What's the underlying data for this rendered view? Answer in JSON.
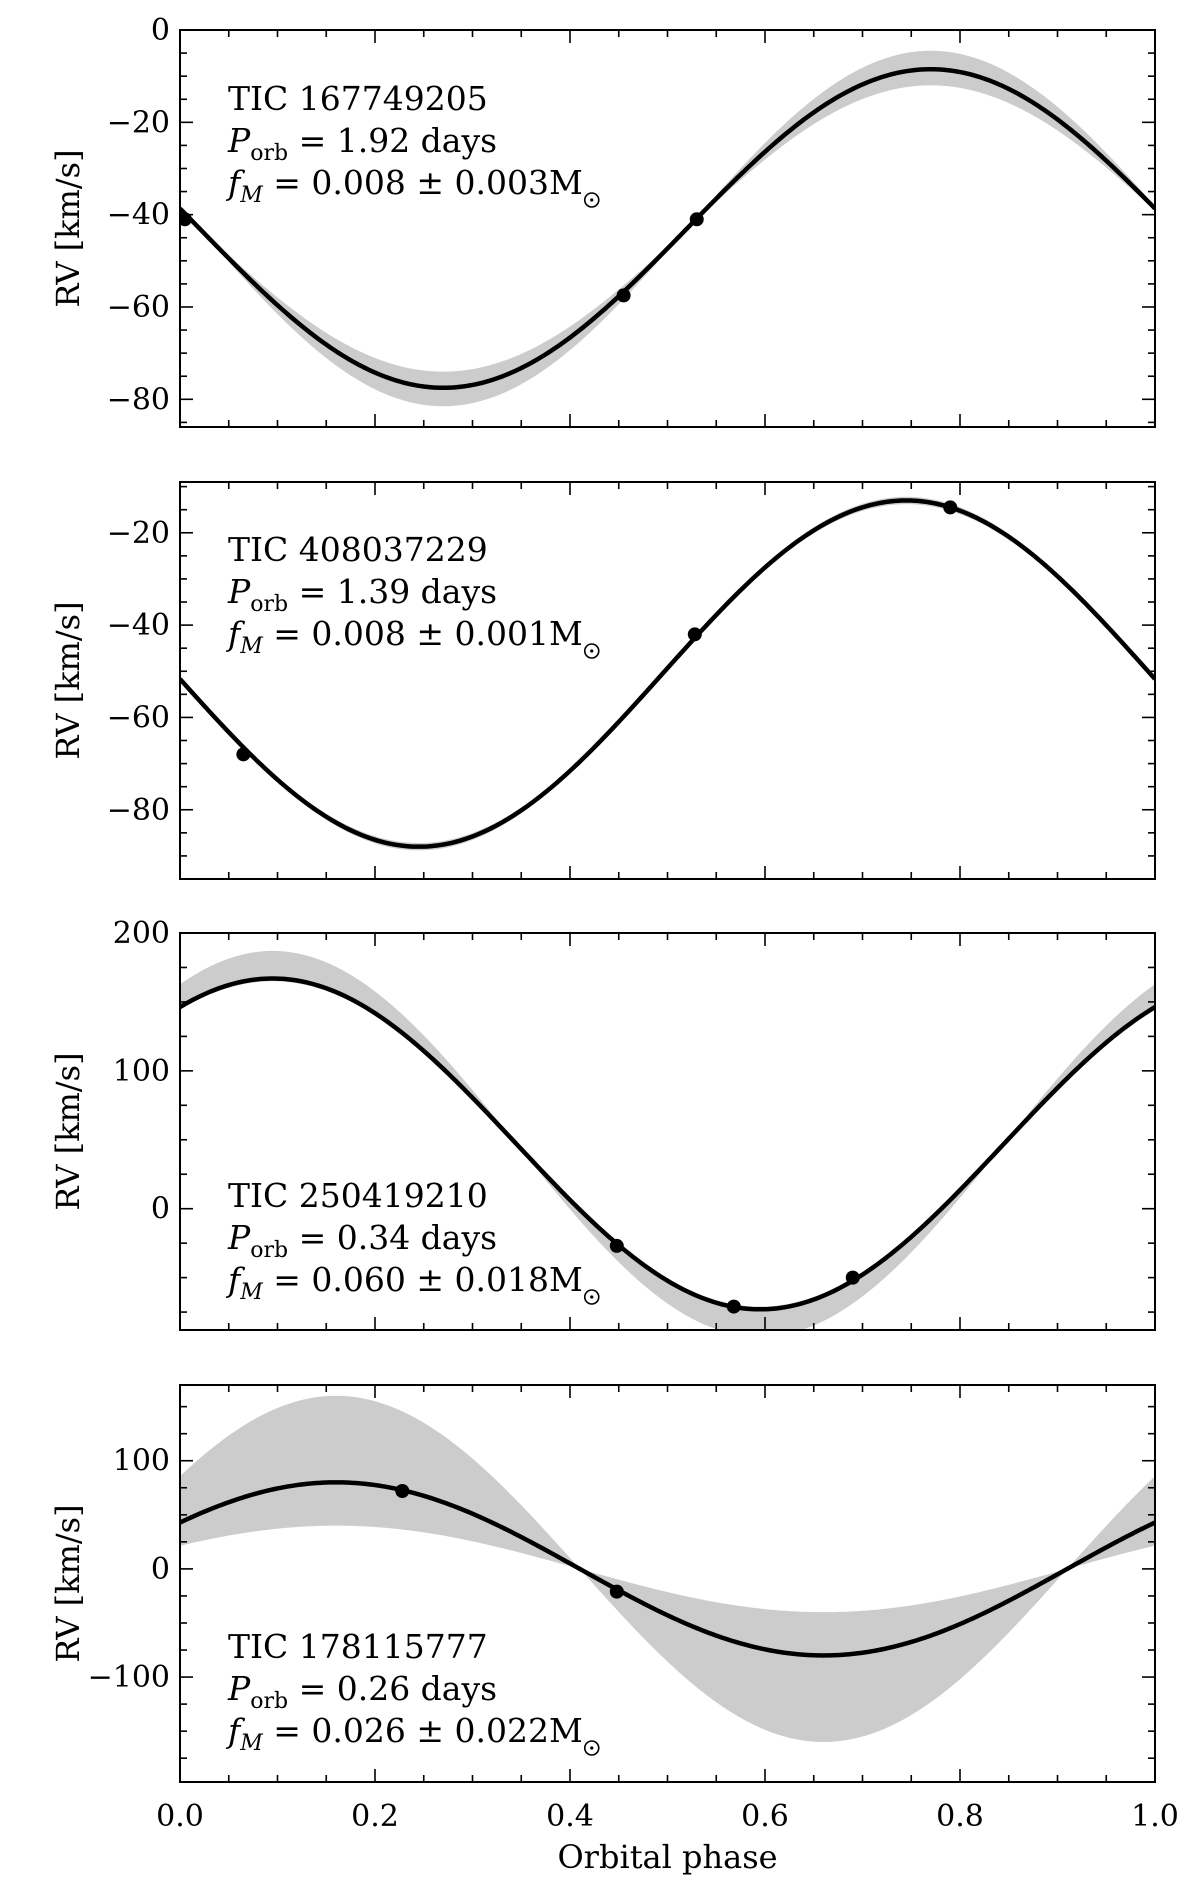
{
  "chart_data": [
    {
      "type": "line",
      "name_text": "TIC 167749205",
      "period_label": "P",
      "period_sub": "orb",
      "period_value": " = 1.92 days",
      "fm_label": "f",
      "fm_sub": "M",
      "fm_value": " = 0.008 ± 0.003M",
      "ylabel": "RV [km/s]",
      "xlim": [
        0,
        1
      ],
      "ylim": [
        -86,
        0
      ],
      "yticks": [
        0,
        -20,
        -40,
        -60,
        -80
      ],
      "ytick_labels": [
        "0",
        "−20",
        "−40",
        "−60",
        "−80"
      ],
      "model": {
        "gamma": -43,
        "K": 34.5,
        "peak_phase": 0.77,
        "band_K_plus": 38.5,
        "band_K_minus": 31
      },
      "points": [
        {
          "x": 0.005,
          "y": -41
        },
        {
          "x": 0.455,
          "y": -57.5
        },
        {
          "x": 0.53,
          "y": -41
        }
      ]
    },
    {
      "type": "line",
      "name_text": "TIC 408037229",
      "period_label": "P",
      "period_sub": "orb",
      "period_value": " = 1.39 days",
      "fm_label": "f",
      "fm_sub": "M",
      "fm_value": " = 0.008 ± 0.001M",
      "ylabel": "RV [km/s]",
      "xlim": [
        0,
        1
      ],
      "ylim": [
        -95,
        -9
      ],
      "yticks": [
        -20,
        -40,
        -60,
        -80
      ],
      "ytick_labels": [
        "−20",
        "−40",
        "−60",
        "−80"
      ],
      "model": {
        "gamma": -50.5,
        "K": 37.5,
        "peak_phase": 0.745,
        "band_K_plus": 38.3,
        "band_K_minus": 36.7
      },
      "points": [
        {
          "x": 0.065,
          "y": -68
        },
        {
          "x": 0.528,
          "y": -42
        },
        {
          "x": 0.79,
          "y": -14.5
        }
      ]
    },
    {
      "type": "line",
      "name_text": "TIC 250419210",
      "period_label": "P",
      "period_sub": "orb",
      "period_value": " = 0.34 days",
      "fm_label": "f",
      "fm_sub": "M",
      "fm_value": " = 0.060 ± 0.018M",
      "ylabel": "RV [km/s]",
      "xlim": [
        0,
        1
      ],
      "ylim": [
        -88,
        200
      ],
      "yticks": [
        200,
        100,
        0
      ],
      "ytick_labels": [
        "200",
        "100",
        "0"
      ],
      "model": {
        "gamma": 47,
        "K": 120,
        "peak_phase": 0.095,
        "band_K_plus": 140,
        "band_K_minus": 118
      },
      "points": [
        {
          "x": 0.448,
          "y": -27
        },
        {
          "x": 0.568,
          "y": -71
        },
        {
          "x": 0.69,
          "y": -50
        }
      ]
    },
    {
      "type": "line",
      "name_text": "TIC 178115777",
      "period_label": "P",
      "period_sub": "orb",
      "period_value": " = 0.26 days",
      "fm_label": "f",
      "fm_sub": "M",
      "fm_value": " = 0.026 ± 0.022M",
      "ylabel": "RV [km/s]",
      "xlim": [
        0,
        1
      ],
      "ylim": [
        -197,
        170
      ],
      "yticks": [
        100,
        0,
        -100
      ],
      "ytick_labels": [
        "100",
        "0",
        "−100"
      ],
      "xlabel": "Orbital phase",
      "xticks": [
        0,
        0.2,
        0.4,
        0.6,
        0.8,
        1.0
      ],
      "xtick_labels": [
        "0.0",
        "0.2",
        "0.4",
        "0.6",
        "0.8",
        "1.0"
      ],
      "model": {
        "gamma": 0,
        "K": 80,
        "peak_phase": 0.16,
        "band_K_plus": 160,
        "band_K_minus": 40
      },
      "points": [
        {
          "x": 0.228,
          "y": 72
        },
        {
          "x": 0.448,
          "y": -21
        }
      ]
    }
  ]
}
